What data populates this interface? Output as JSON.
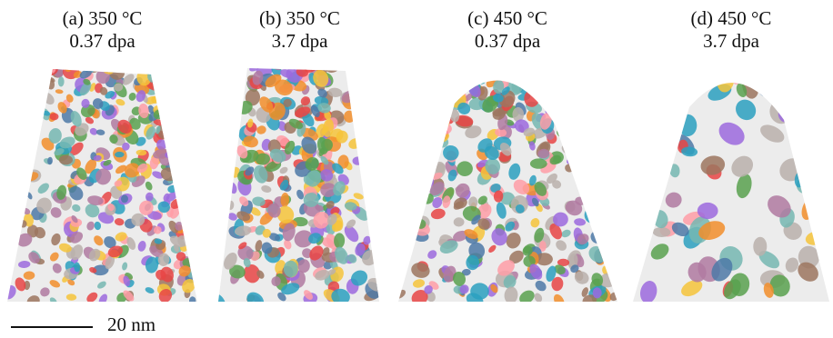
{
  "panels": [
    {
      "line1": "(a)  350 °C",
      "line2": "0.37 dpa",
      "shape": "narrow",
      "density": 330,
      "size": 7,
      "seed": 11
    },
    {
      "line1": "(b) 350 °C",
      "line2": "3.7 dpa",
      "shape": "narrow",
      "density": 300,
      "size": 8,
      "seed": 23
    },
    {
      "line1": "(c) 450 °C",
      "line2": "0.37 dpa",
      "shape": "dome",
      "density": 300,
      "size": 8,
      "seed": 37
    },
    {
      "line1": "(d) 450 °C",
      "line2": "3.7 dpa",
      "shape": "dome",
      "density": 60,
      "size": 12,
      "seed": 51
    }
  ],
  "cluster_colors": [
    "#e84545",
    "#f28e2b",
    "#f6c43b",
    "#59a14f",
    "#4e79a7",
    "#76b7b2",
    "#9c6ade",
    "#ff9da7",
    "#b07aa1",
    "#9c755f",
    "#bab0ac",
    "#2ca0c0"
  ],
  "scalebar": {
    "label": "20 nm"
  }
}
